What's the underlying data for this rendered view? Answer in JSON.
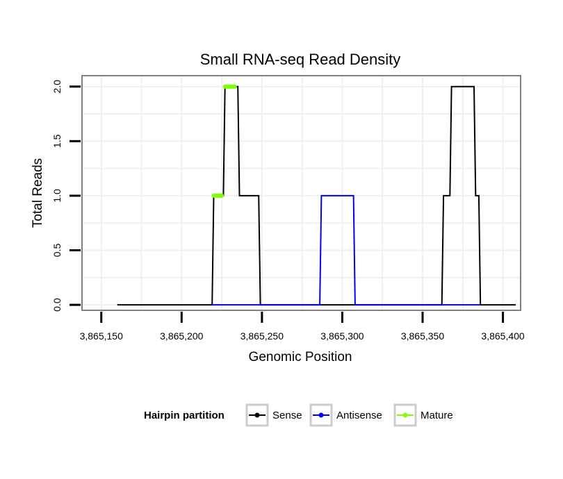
{
  "chart_data": {
    "type": "line",
    "title": "Small RNA-seq Read Density",
    "xlabel": "Genomic Position",
    "ylabel": "Total Reads",
    "xlim": [
      3865138,
      3865411
    ],
    "ylim": [
      -0.05,
      2.1
    ],
    "x_ticks": [
      3865150,
      3865200,
      3865250,
      3865300,
      3865350,
      3865400
    ],
    "x_tick_labels": [
      "3,865,150",
      "3,865,200",
      "3,865,250",
      "3,865,300",
      "3,865,350",
      "3,865,400"
    ],
    "y_ticks": [
      0.0,
      0.5,
      1.0,
      1.5,
      2.0
    ],
    "y_tick_labels": [
      "0.0",
      "0.5",
      "1.0",
      "1.5",
      "2.0"
    ],
    "grid": true,
    "legend": {
      "title": "Hairpin partition",
      "position": "bottom",
      "entries": [
        {
          "name": "Sense",
          "color": "#000000"
        },
        {
          "name": "Antisense",
          "color": "#0000ff"
        },
        {
          "name": "Mature",
          "color": "#7fff00"
        }
      ]
    },
    "series": [
      {
        "name": "Sense",
        "color": "#000000",
        "x": [
          3865160,
          3865219,
          3865220,
          3865226,
          3865227,
          3865235,
          3865236,
          3865248,
          3865249,
          3865362,
          3865363,
          3865367,
          3865368,
          3865382,
          3865383,
          3865385,
          3865386,
          3865408
        ],
        "y": [
          0,
          0,
          1,
          1,
          2,
          2,
          1,
          1,
          0,
          0,
          1,
          1,
          2,
          2,
          1,
          1,
          0,
          0
        ]
      },
      {
        "name": "Antisense",
        "color": "#0000ff",
        "x": [
          3865219,
          3865249,
          3865286,
          3865287,
          3865307,
          3865308,
          3865362,
          3865386
        ],
        "y": [
          0,
          0,
          0,
          1,
          1,
          0,
          0,
          0
        ]
      },
      {
        "name": "Mature",
        "color": "#7fff00",
        "segments": [
          {
            "x": [
              3865220,
              3865225
            ],
            "y": [
              1,
              1
            ]
          },
          {
            "x": [
              3865227,
              3865233
            ],
            "y": [
              2,
              2
            ]
          }
        ]
      }
    ]
  }
}
